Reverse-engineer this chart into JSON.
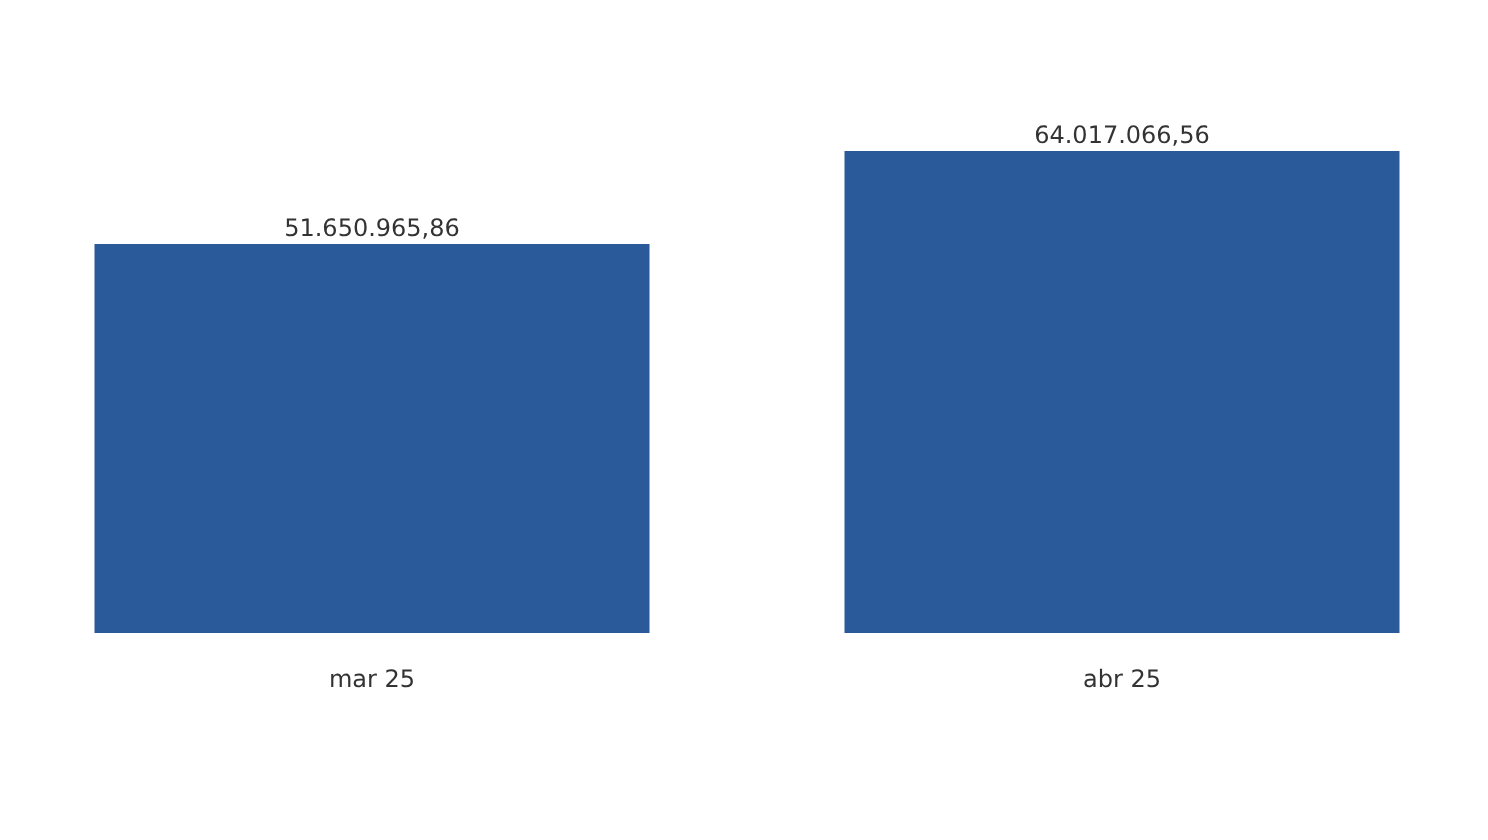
{
  "chart_data": {
    "type": "bar",
    "categories": [
      "mar 25",
      "abr 25"
    ],
    "values": [
      51650965.86,
      64017066.56
    ],
    "color": "#2b5a9a",
    "value_labels": [
      "51.650.965,86",
      "64.017.066,56"
    ],
    "tick_labels": "x"
  }
}
